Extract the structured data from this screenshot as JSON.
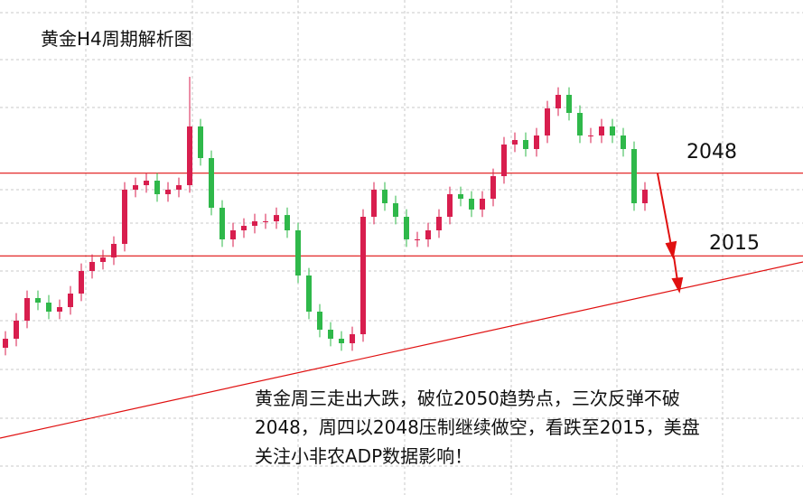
{
  "chart_data": {
    "type": "candlestick",
    "title": "黄金H4周期解析图",
    "ylim": [
      1919.72,
      2117
    ],
    "open": [
      1978.4,
      1982.0,
      1989.2,
      1998.2,
      1996.4,
      1992.8,
      1994.6,
      2000.0,
      2009.0,
      2012.6,
      2014.4,
      2019.8,
      2041.4,
      2043.2,
      2045.0,
      2039.6,
      2041.4,
      2043.2,
      2066.6,
      2054.0,
      2034.2,
      2021.6,
      2025.2,
      2027.0,
      2028.8,
      2028.8,
      2031.3,
      2025.2,
      2007.2,
      1992.8,
      1985.6,
      1982.0,
      1980.2,
      1983.8,
      2030.6,
      2041.4,
      2036.0,
      2030.6,
      2021.6,
      2021.6,
      2025.2,
      2030.6,
      2039.6,
      2037.8,
      2033.5,
      2037.8,
      2046.8,
      2059.4,
      2061.2,
      2057.6,
      2063.0,
      2073.8,
      2079.2,
      2072.0,
      2063.0,
      2063.0,
      2066.6,
      2063.0,
      2057.6,
      2036.0
    ],
    "high": [
      1985.0,
      1992.2,
      2001.2,
      2001.2,
      1999.4,
      1997.6,
      2003.0,
      2012.0,
      2015.6,
      2017.4,
      2022.8,
      2044.4,
      2046.2,
      2048.0,
      2048.0,
      2044.4,
      2046.2,
      2086.4,
      2069.6,
      2057.0,
      2037.2,
      2028.2,
      2030.0,
      2031.8,
      2031.8,
      2034.3,
      2034.3,
      2028.2,
      2010.2,
      1995.8,
      1988.6,
      1985.0,
      1986.8,
      2033.6,
      2044.4,
      2044.4,
      2039.0,
      2033.6,
      2024.6,
      2028.2,
      2033.6,
      2042.6,
      2042.6,
      2040.8,
      2040.8,
      2049.8,
      2062.4,
      2064.2,
      2064.2,
      2066.0,
      2076.8,
      2082.2,
      2082.2,
      2075.0,
      2066.0,
      2069.6,
      2069.6,
      2066.0,
      2060.6,
      2044.4
    ],
    "low": [
      1975.4,
      1979.0,
      1986.2,
      1993.4,
      1989.8,
      1989.8,
      1991.6,
      1997.0,
      2006.0,
      2009.6,
      2011.4,
      2016.8,
      2038.4,
      2040.2,
      2036.6,
      2036.6,
      2038.4,
      2040.2,
      2051.0,
      2031.2,
      2018.6,
      2018.6,
      2022.2,
      2024.0,
      2025.8,
      2025.8,
      2022.2,
      2004.2,
      1989.8,
      1982.6,
      1979.0,
      1977.2,
      1977.2,
      1980.8,
      2027.6,
      2033.0,
      2027.6,
      2018.6,
      2018.6,
      2018.6,
      2022.2,
      2027.6,
      2034.8,
      2030.5,
      2030.5,
      2034.8,
      2043.8,
      2056.4,
      2054.6,
      2054.6,
      2060.0,
      2070.8,
      2069.0,
      2060.0,
      2060.0,
      2060.0,
      2060.0,
      2054.6,
      2033.0,
      2033.0
    ],
    "close": [
      1982.0,
      1989.2,
      1998.2,
      1996.4,
      1992.8,
      1994.6,
      2000.0,
      2009.0,
      2012.6,
      2014.4,
      2019.8,
      2041.4,
      2043.2,
      2045.0,
      2039.6,
      2041.4,
      2043.2,
      2066.6,
      2054.0,
      2034.2,
      2021.6,
      2025.2,
      2027.0,
      2028.8,
      2028.8,
      2031.3,
      2025.2,
      2007.2,
      1992.8,
      1985.6,
      1982.0,
      1980.2,
      1983.8,
      2030.6,
      2041.4,
      2036.0,
      2030.6,
      2021.6,
      2021.6,
      2025.2,
      2030.6,
      2039.6,
      2037.8,
      2033.5,
      2037.8,
      2046.8,
      2059.4,
      2061.2,
      2057.6,
      2063.0,
      2073.8,
      2079.2,
      2072.0,
      2063.0,
      2063.0,
      2066.6,
      2063.0,
      2057.6,
      2036.0,
      2041.4
    ],
    "up_color": "#d81e4e",
    "down_color": "#2fb84a",
    "levels": [
      2048,
      2015
    ],
    "level_color": "#e01010",
    "trendline": {
      "x": [
        -0.5,
        73.6
      ],
      "values": [
        1942.4,
        2012.6
      ]
    },
    "annotation": [
      "黄金周三走出大跌，破位2050趋势点，三次反弹不破",
      "2048，周四以2048压制继续做空，看跌至2015，美盘",
      "关注小非农ADP数据影响！"
    ]
  }
}
